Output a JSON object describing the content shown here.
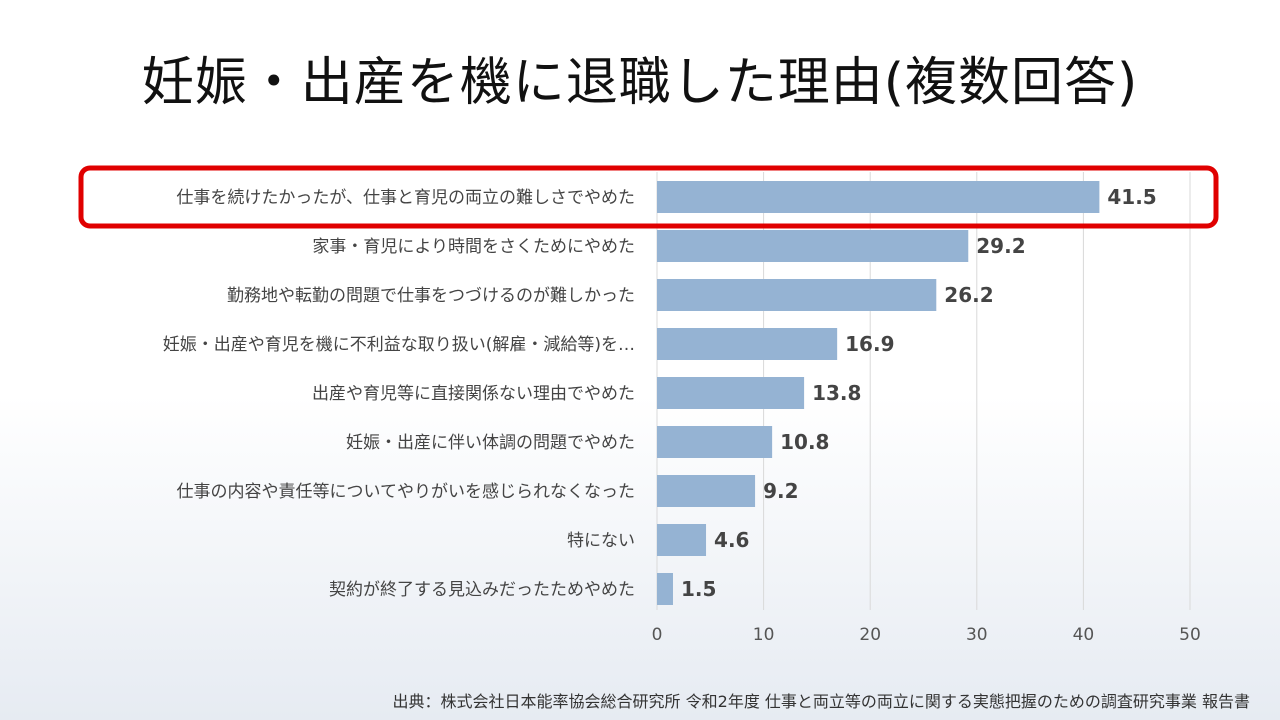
{
  "title": "妊娠・出産を機に退職した理由(複数回答)",
  "source": "出典：株式会社日本能率協会総合研究所  令和2年度  仕事と両立等の両立に関する実態把握のための調査研究事業  報告書",
  "colors": {
    "bar": "#95b3d3",
    "highlight": "#e00000",
    "grid": "#d9d9d9"
  },
  "chart_data": {
    "type": "bar",
    "orientation": "horizontal",
    "categories": [
      "仕事を続けたかったが、仕事と育児の両立の難しさでやめた",
      "家事・育児により時間をさくためにやめた",
      "勤務地や転勤の問題で仕事をつづけるのが難しかった",
      "妊娠・出産や育児を機に不利益な取り扱い(解雇・減給等)を…",
      "出産や育児等に直接関係ない理由でやめた",
      "妊娠・出産に伴い体調の問題でやめた",
      "仕事の内容や責任等についてやりがいを感じられなくなった",
      "特にない",
      "契約が終了する見込みだったためやめた"
    ],
    "values": [
      41.5,
      29.2,
      26.2,
      16.9,
      13.8,
      10.8,
      9.2,
      4.6,
      1.5
    ],
    "value_labels": [
      "41.5",
      "29.2",
      "26.2",
      "16.9",
      "13.8",
      "10.8",
      "9.2",
      "4.6",
      "1.5"
    ],
    "xlim": [
      0,
      50
    ],
    "ticks": [
      0,
      10,
      20,
      30,
      40,
      50
    ],
    "tick_labels": [
      "0",
      "10",
      "20",
      "30",
      "40",
      "50"
    ],
    "grid": true,
    "highlighted_category_index": 0
  }
}
